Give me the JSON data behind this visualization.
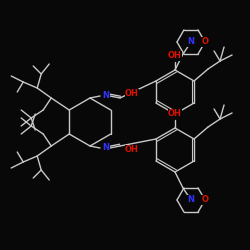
{
  "background": "#080808",
  "bond_color": "#c8c8c8",
  "N_color": "#3333ff",
  "O_color": "#dd1100",
  "bond_width": 1.0,
  "figsize": [
    2.5,
    2.5
  ],
  "dpi": 100,
  "xlim": [
    0,
    250
  ],
  "ylim": [
    0,
    250
  ]
}
